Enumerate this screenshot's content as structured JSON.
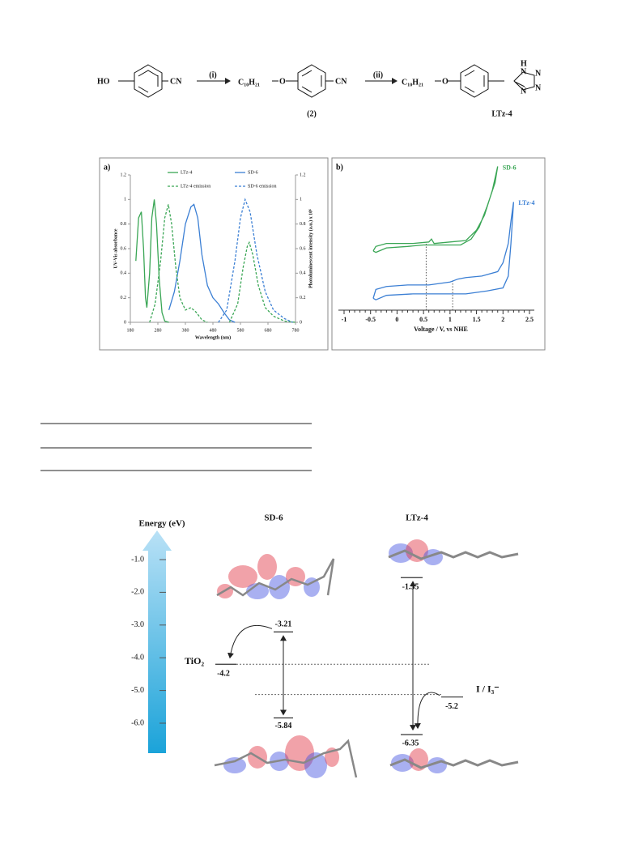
{
  "scheme": {
    "reactant": "HO",
    "cyano": "CN",
    "step_1": "(i)",
    "alkyl": "C₁₀H₂₁",
    "oxygen": "O",
    "intermediate_cyano": "CN",
    "intermediate_label": "(2)",
    "step_2": "(ii)",
    "product_alkyl": "C₁₀H₂₁",
    "product_oxygen": "O",
    "tetrazole_atoms": [
      "H",
      "N",
      "N",
      "N",
      "N"
    ],
    "product_label": "LTz-4"
  },
  "chart_data": [
    {
      "type": "line",
      "panel_label": "a)",
      "xlabel": "Wavelength (nm)",
      "ylabel": "UV-Vis absorbance",
      "y2label": "Photoluminescent intensity (a.u.) x 10⁶",
      "xlim": [
        180,
        780
      ],
      "xticks": [
        180,
        280,
        380,
        480,
        580,
        680,
        780
      ],
      "ylim": [
        0,
        1.2
      ],
      "yticks": [
        0,
        0.2,
        0.4,
        0.6,
        0.8,
        1,
        1.2
      ],
      "y2lim": [
        0,
        1.2
      ],
      "y2ticks": [
        0,
        0.2,
        0.4,
        0.6,
        0.8,
        1,
        1.2
      ],
      "series": [
        {
          "name": "LTz-4",
          "color": "#3aa655",
          "dashed": false,
          "x": [
            200,
            210,
            220,
            228,
            235,
            240,
            250,
            258,
            267,
            275,
            285,
            295,
            305,
            320
          ],
          "values": [
            0.5,
            0.85,
            0.9,
            0.6,
            0.2,
            0.12,
            0.4,
            0.85,
            1.0,
            0.8,
            0.35,
            0.08,
            0.01,
            0
          ]
        },
        {
          "name": "SD-6",
          "color": "#3b7fd4",
          "dashed": false,
          "x": [
            320,
            340,
            360,
            380,
            400,
            411,
            425,
            440,
            460,
            480,
            500,
            520,
            540,
            560
          ],
          "values": [
            0.1,
            0.25,
            0.5,
            0.8,
            0.94,
            0.96,
            0.85,
            0.55,
            0.3,
            0.2,
            0.15,
            0.08,
            0.02,
            0
          ]
        },
        {
          "name": "LTz-4 emission",
          "color": "#3aa655",
          "dashed": true,
          "axis": "y2",
          "x": [
            250,
            270,
            290,
            305,
            318,
            330,
            345,
            360,
            380,
            400,
            420,
            440,
            460,
            500,
            540,
            570,
            590,
            605,
            612,
            625,
            645,
            670,
            700,
            740,
            780
          ],
          "values": [
            0,
            0.15,
            0.5,
            0.85,
            0.96,
            0.8,
            0.45,
            0.2,
            0.1,
            0.12,
            0.08,
            0.02,
            0,
            null,
            0,
            0.15,
            0.45,
            0.62,
            0.65,
            0.55,
            0.3,
            0.12,
            0.05,
            0.01,
            0
          ]
        },
        {
          "name": "SD-6 emission",
          "color": "#3b7fd4",
          "dashed": true,
          "axis": "y2",
          "x": [
            500,
            530,
            560,
            580,
            597,
            615,
            640,
            670,
            700,
            740,
            770
          ],
          "values": [
            0,
            0.1,
            0.5,
            0.85,
            1.0,
            0.9,
            0.55,
            0.25,
            0.1,
            0.03,
            0
          ]
        }
      ]
    },
    {
      "type": "line",
      "panel_label": "b)",
      "xlabel": "Voltage / V, vs NHE",
      "xlim": [
        -1,
        2.5
      ],
      "xticks": [
        -1,
        -0.5,
        0,
        0.5,
        1,
        1.5,
        2,
        2.5
      ],
      "ylim": [
        0,
        1
      ],
      "onsets": [
        0.55,
        1.05
      ],
      "series": [
        {
          "name": "SD-6",
          "color": "#3aa655",
          "dashed": false,
          "x": [
            -0.45,
            -0.4,
            -0.2,
            0,
            0.3,
            0.6,
            0.65,
            0.7,
            1.0,
            1.3,
            1.5,
            1.65,
            1.8,
            1.9,
            1.85,
            1.7,
            1.55,
            1.4,
            1.2,
            0.8,
            0.5,
            0.2,
            -0.2,
            -0.4,
            -0.45
          ],
          "values": [
            0.4,
            0.43,
            0.45,
            0.45,
            0.45,
            0.46,
            0.48,
            0.45,
            0.46,
            0.47,
            0.54,
            0.64,
            0.81,
            0.97,
            0.86,
            0.7,
            0.56,
            0.48,
            0.44,
            0.44,
            0.44,
            0.43,
            0.42,
            0.39,
            0.4
          ]
        },
        {
          "name": "LTz-4",
          "color": "#3b7fd4",
          "dashed": false,
          "x": [
            -0.45,
            -0.4,
            -0.2,
            0.2,
            0.6,
            1.0,
            1.15,
            1.3,
            1.6,
            1.9,
            2.0,
            2.1,
            2.15,
            2.2,
            2.15,
            2.1,
            2.0,
            1.7,
            1.3,
            0.8,
            0.3,
            -0.2,
            -0.4,
            -0.45
          ],
          "values": [
            0.08,
            0.14,
            0.16,
            0.17,
            0.17,
            0.19,
            0.21,
            0.22,
            0.23,
            0.26,
            0.32,
            0.45,
            0.6,
            0.73,
            0.45,
            0.23,
            0.15,
            0.13,
            0.11,
            0.11,
            0.11,
            0.1,
            0.07,
            0.08
          ]
        }
      ]
    }
  ],
  "energy_diagram": {
    "axis_title": "Energy (eV)",
    "ticks": [
      {
        "value": -1,
        "label": "-1.0"
      },
      {
        "value": -2,
        "label": "-2.0"
      },
      {
        "value": -3,
        "label": "-3.0"
      },
      {
        "value": -4,
        "label": "-4.0"
      },
      {
        "value": -5,
        "label": "-5.0"
      },
      {
        "value": -6,
        "label": "-6.0"
      }
    ],
    "molecule_1": "SD-6",
    "molecule_2": "LTz-4",
    "acceptor_label": "TiO₂",
    "electrolyte_label": "I / I₃⁻",
    "levels": {
      "tio2": -4.2,
      "electrolyte": -5.2,
      "sd6_lumo": -3.21,
      "sd6_homo": -5.84,
      "ltz4_lumo": -1.55,
      "ltz4_homo": -6.35
    }
  }
}
